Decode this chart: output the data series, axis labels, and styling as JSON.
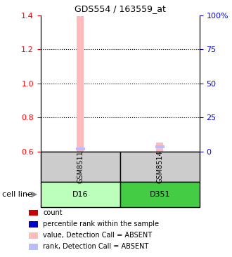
{
  "title": "GDS554 / 163559_at",
  "samples": [
    "GSM8511",
    "GSM8514"
  ],
  "cell_lines": [
    "D16",
    "D351"
  ],
  "cell_line_colors": [
    "#bbffbb",
    "#44cc44"
  ],
  "sample_box_color": "#cccccc",
  "ylim_left": [
    0.6,
    1.4
  ],
  "yticks_left": [
    0.6,
    0.8,
    1.0,
    1.2,
    1.4
  ],
  "ytick_labels_right": [
    "0",
    "25",
    "50",
    "75",
    "100%"
  ],
  "bar1_value": 1.395,
  "bar1_rank_pct": 2.0,
  "bar2_value": 0.655,
  "bar2_rank_pct": 3.5,
  "bar_width": 0.09,
  "bar_color_absent": "#ffbbbb",
  "rank_color_absent": "#bbbbff",
  "legend_items": [
    {
      "color": "#cc0000",
      "label": "count"
    },
    {
      "color": "#0000cc",
      "label": "percentile rank within the sample"
    },
    {
      "color": "#ffbbbb",
      "label": "value, Detection Call = ABSENT"
    },
    {
      "color": "#bbbbff",
      "label": "rank, Detection Call = ABSENT"
    }
  ],
  "background_color": "#ffffff"
}
